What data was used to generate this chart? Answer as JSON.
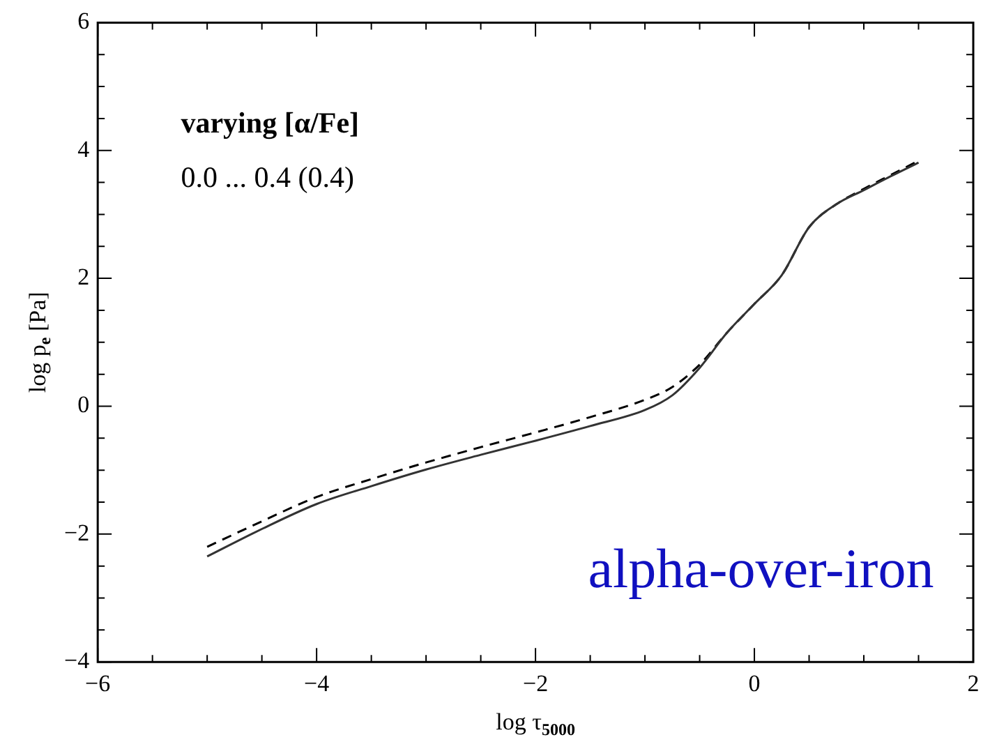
{
  "chart_data": {
    "type": "line",
    "xlabel": "log τ$_{5000}$",
    "ylabel": "log p$_{e}$ [Pa]",
    "x": [
      -5,
      -4.5,
      -4,
      -3.5,
      -3,
      -2.5,
      -2,
      -1.5,
      -1,
      -0.75,
      -0.5,
      -0.25,
      0,
      0.25,
      0.5,
      0.75,
      1,
      1.25,
      1.5
    ],
    "series": [
      {
        "color": "#333333",
        "line_style": "solid",
        "values": [
          -2.35,
          -1.92,
          -1.53,
          -1.25,
          -0.99,
          -0.76,
          -0.54,
          -0.31,
          -0.06,
          0.17,
          0.6,
          1.15,
          1.6,
          2.05,
          2.8,
          3.16,
          3.38,
          3.6,
          3.81
        ]
      },
      {
        "color": "#000000",
        "line_style": "dashed",
        "values": [
          -2.2,
          -1.8,
          -1.42,
          -1.14,
          -0.88,
          -0.64,
          -0.41,
          -0.17,
          0.1,
          0.3,
          0.65,
          1.15,
          1.6,
          2.05,
          2.8,
          3.16,
          3.4,
          3.62,
          3.84
        ]
      }
    ],
    "xlim": [
      -6,
      2
    ],
    "xticks": [
      -6,
      -4,
      -2,
      0,
      2
    ],
    "ylim": [
      -4,
      6
    ],
    "yticks": [
      -4,
      -2,
      0,
      2,
      4,
      6
    ],
    "grid": false,
    "legend": false,
    "marker": "none",
    "annotations": [
      "varying [α/Fe]",
      "0.0 ... 0.4 (0.4)",
      "alpha-over-iron"
    ]
  }
}
